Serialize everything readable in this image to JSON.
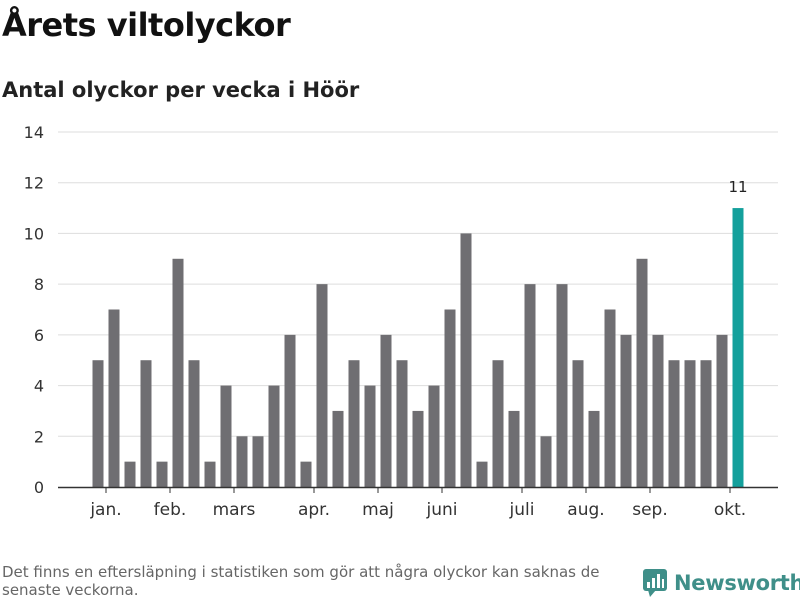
{
  "header": {
    "title": "Årets viltolyckor",
    "subtitle": "Antal olyckor per vecka i Höör"
  },
  "footer": {
    "note": "Det finns en eftersläpning i statistiken som gör att några olyckor kan saknas de senaste veckorna.",
    "brand": "Newsworthy",
    "brand_icon": "newsworthy-logo-icon"
  },
  "colors": {
    "bar": "#6f6e72",
    "highlight": "#14a09c",
    "grid": "#dddddd",
    "axis": "#333333",
    "brand": "#3f8f89"
  },
  "chart_data": {
    "type": "bar",
    "title": "Antal olyckor per vecka i Höör",
    "xlabel": "",
    "ylabel": "",
    "ylim": [
      0,
      14
    ],
    "yticks": [
      0,
      2,
      4,
      6,
      8,
      10,
      12,
      14
    ],
    "grid": true,
    "values": [
      5,
      7,
      1,
      5,
      1,
      9,
      5,
      1,
      4,
      2,
      2,
      4,
      6,
      1,
      8,
      3,
      5,
      4,
      6,
      5,
      3,
      4,
      7,
      10,
      1,
      5,
      3,
      8,
      2,
      8,
      5,
      3,
      7,
      6,
      9,
      6,
      5,
      5,
      5,
      6,
      11
    ],
    "highlight_index": 40,
    "highlight_label": "11",
    "month_labels": [
      {
        "label": "jan.",
        "index": 0.5
      },
      {
        "label": "feb.",
        "index": 4.5
      },
      {
        "label": "mars",
        "index": 8.5
      },
      {
        "label": "apr.",
        "index": 13.5
      },
      {
        "label": "maj",
        "index": 17.5
      },
      {
        "label": "juni",
        "index": 21.5
      },
      {
        "label": "juli",
        "index": 26.5
      },
      {
        "label": "aug.",
        "index": 30.5
      },
      {
        "label": "sep.",
        "index": 34.5
      },
      {
        "label": "okt.",
        "index": 39.5
      }
    ]
  }
}
